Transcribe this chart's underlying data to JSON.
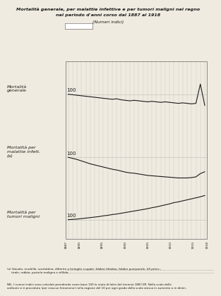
{
  "title_line1": "Mortalità generale, per malattie infettive e per tumori maligni nel regno",
  "title_line2": "nel periodo d'anni corso dal 1887 al 1918",
  "subtitle": "(Numeri indici)",
  "bg_color": "#f0ebe0",
  "line_color": "#1a1a1a",
  "grid_color": "#bbbbbb",
  "years": [
    1887,
    1888,
    1889,
    1890,
    1891,
    1892,
    1893,
    1894,
    1895,
    1896,
    1897,
    1898,
    1899,
    1900,
    1901,
    1902,
    1903,
    1904,
    1905,
    1906,
    1907,
    1908,
    1909,
    1910,
    1911,
    1912,
    1913,
    1914,
    1915,
    1916,
    1917,
    1918
  ],
  "mortalita_generale": [
    100,
    99,
    98,
    97,
    96,
    95,
    94,
    93,
    92,
    91,
    90,
    91,
    89,
    88,
    87,
    88,
    87,
    86,
    85,
    86,
    85,
    84,
    85,
    84,
    83,
    82,
    83,
    82,
    81,
    82,
    120,
    78
  ],
  "malattie_infettive": [
    100,
    97,
    94,
    90,
    86,
    82,
    79,
    76,
    73,
    70,
    67,
    65,
    62,
    59,
    57,
    56,
    54,
    52,
    50,
    49,
    48,
    47,
    46,
    45,
    44,
    43,
    43,
    43,
    44,
    46,
    55,
    60
  ],
  "tumori_maligni": [
    100,
    101,
    102,
    104,
    106,
    108,
    110,
    112,
    115,
    117,
    120,
    122,
    125,
    128,
    131,
    134,
    137,
    140,
    143,
    147,
    150,
    154,
    158,
    162,
    167,
    170,
    174,
    178,
    182,
    186,
    190,
    195
  ],
  "label_gen": "Mortalità\ngenerale",
  "label_infett": "Mortalità per\nmalattie infett.\n(a)",
  "label_tumore": "Mortalità per\ntumori maligni",
  "note_a": "(a) Vaiuolo, morbillo, scarlattina, difterite e laringite crupale, febbre tifoidea, febbre puerperale, tifi petec.,\n     tirale, rabbia, pustola maligna e sifilide.",
  "note_nb": "NB– I numeri indici sono calcolati prendendo come base 100 lo stato di fatto del triennio 1887-89. Nella scala delle\nordinate si è proceduto (per ciascun fenomeno) nella ragione del 10 per ogni grado della scala stessa in aumento o in dimin."
}
